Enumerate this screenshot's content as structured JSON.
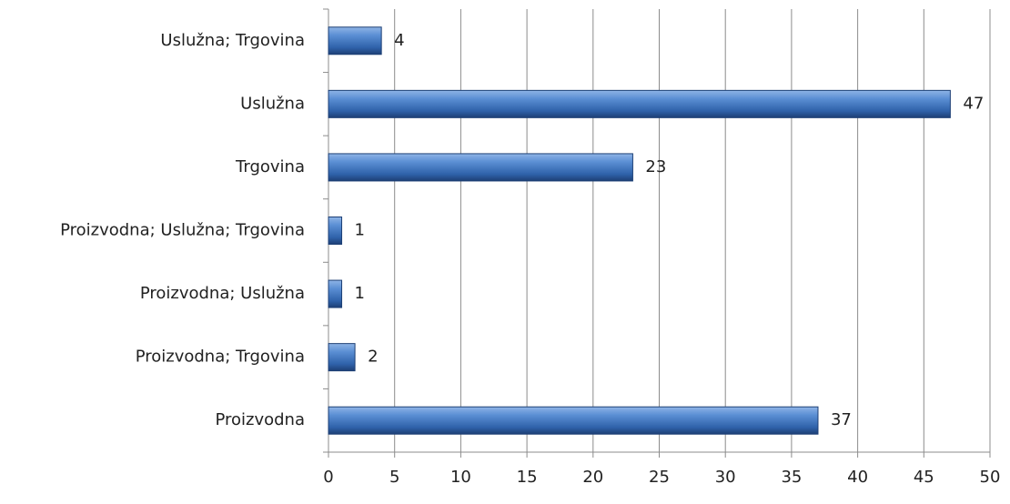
{
  "chart_data": {
    "type": "bar",
    "orientation": "horizontal",
    "categories": [
      "Uslužna; Trgovina",
      "Uslužna",
      "Trgovina",
      "Proizvodna; Uslužna; Trgovina",
      "Proizvodna; Uslužna",
      "Proizvodna; Trgovina",
      "Proizvodna"
    ],
    "values": [
      4,
      47,
      23,
      1,
      1,
      2,
      37
    ],
    "color": "#3f72b8",
    "xlim": [
      0,
      50
    ],
    "xticks": [
      0,
      5,
      10,
      15,
      20,
      25,
      30,
      35,
      40,
      45,
      50
    ],
    "grid": true
  }
}
